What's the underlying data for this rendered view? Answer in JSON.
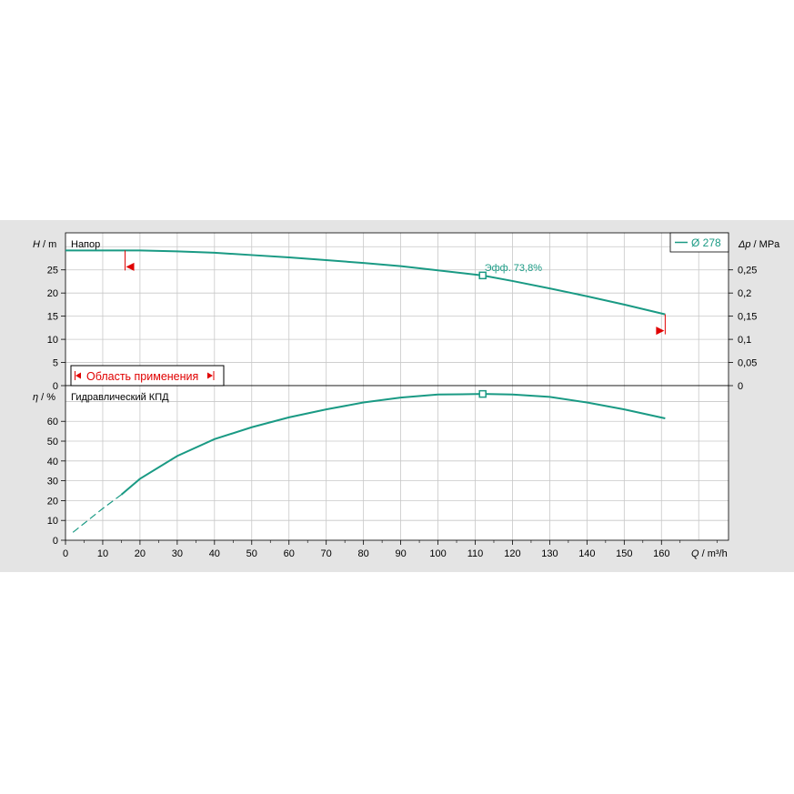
{
  "colors": {
    "background": "#e4e4e4",
    "plot_area": "#ffffff",
    "grid": "#c8c8c8",
    "curve": "#1a9a84",
    "range_marker": "#e00000",
    "axis": "#000000"
  },
  "legend": {
    "label": "Ø 278"
  },
  "application_range": {
    "label": "Область применения"
  },
  "chart_data": [
    {
      "type": "line",
      "title": "Напор",
      "xlabel": "Q / m³/h",
      "ylabel": "H / m",
      "y2label": "Δp / MPa",
      "xlim": [
        0,
        178
      ],
      "ylim": [
        0,
        33
      ],
      "y2lim": [
        0,
        0.33
      ],
      "xticks": [
        0,
        10,
        20,
        30,
        40,
        50,
        60,
        70,
        80,
        90,
        100,
        110,
        120,
        130,
        140,
        150,
        160
      ],
      "yticks": [
        0,
        5,
        10,
        15,
        20,
        25
      ],
      "y2ticks": [
        "0",
        "0,05",
        "0,1",
        "0,15",
        "0,2",
        "0,25"
      ],
      "grid": true,
      "series": [
        {
          "name": "Ø 278",
          "x": [
            0,
            16,
            20,
            30,
            40,
            50,
            60,
            70,
            80,
            90,
            100,
            112,
            120,
            130,
            140,
            150,
            161
          ],
          "y": [
            29.2,
            29.2,
            29.2,
            29.0,
            28.7,
            28.2,
            27.7,
            27.1,
            26.5,
            25.8,
            24.9,
            23.8,
            22.6,
            21.0,
            19.3,
            17.5,
            15.4
          ]
        }
      ],
      "operating_point": {
        "x": 112,
        "y": 23.8,
        "label": "Эфф.  73,8%"
      },
      "range_markers": {
        "min_q": 16,
        "max_q": 161
      }
    },
    {
      "type": "line",
      "title": "Гидравлический КПД",
      "xlabel": "Q / m³/h",
      "ylabel": "η / %",
      "xlim": [
        0,
        178
      ],
      "ylim": [
        0,
        78
      ],
      "xticks": [
        0,
        10,
        20,
        30,
        40,
        50,
        60,
        70,
        80,
        90,
        100,
        110,
        120,
        130,
        140,
        150,
        160
      ],
      "yticks": [
        0,
        10,
        20,
        30,
        40,
        50,
        60
      ],
      "grid": true,
      "series": [
        {
          "name": "Ø 278",
          "x": [
            2,
            5,
            10,
            15,
            20,
            30,
            40,
            50,
            60,
            70,
            80,
            90,
            100,
            112,
            120,
            130,
            140,
            150,
            161
          ],
          "y": [
            4,
            8.5,
            16,
            23,
            31,
            42.5,
            51,
            57,
            62,
            66,
            69.5,
            72,
            73.5,
            73.8,
            73.5,
            72.3,
            69.5,
            66,
            61.5
          ]
        }
      ],
      "operating_point": {
        "x": 112,
        "y": 73.8
      },
      "segments": {
        "dashed_until_q": 16
      }
    }
  ]
}
